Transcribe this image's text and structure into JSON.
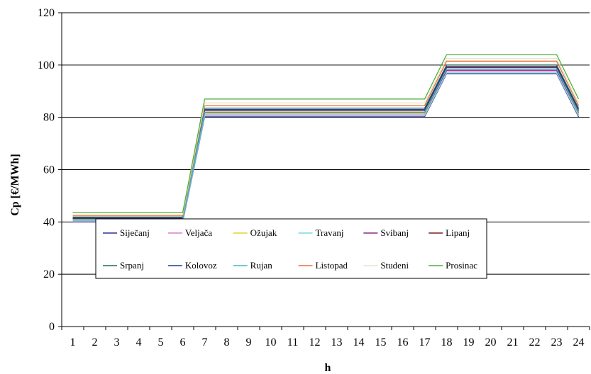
{
  "chart_data": {
    "type": "line",
    "xlabel": "h",
    "ylabel": "Cp [€/MWh]",
    "x": [
      1,
      2,
      3,
      4,
      5,
      6,
      7,
      8,
      9,
      10,
      11,
      12,
      13,
      14,
      15,
      16,
      17,
      18,
      19,
      20,
      21,
      22,
      23,
      24
    ],
    "xtick_labels": [
      "1",
      "2",
      "3",
      "4",
      "5",
      "6",
      "7",
      "8",
      "9",
      "10",
      "11",
      "12",
      "13",
      "14",
      "15",
      "16",
      "17",
      "18",
      "19",
      "20",
      "21",
      "22",
      "23",
      "24"
    ],
    "ylim": [
      0,
      120
    ],
    "ytick_labels": [
      "0",
      "20",
      "40",
      "60",
      "80",
      "100",
      "120"
    ],
    "grid": "horizontal",
    "legend_position": "lower-center",
    "series": [
      {
        "name": "Siječanj",
        "color": "#2e3192",
        "values": [
          40.0,
          40.0,
          40.0,
          40.0,
          40.0,
          40.0,
          80.2,
          80.2,
          80.2,
          80.2,
          80.2,
          80.2,
          80.2,
          80.2,
          80.2,
          80.2,
          80.2,
          96.7,
          96.7,
          96.7,
          96.7,
          96.7,
          96.7,
          80.2
        ]
      },
      {
        "name": "Veljača",
        "color": "#d97fd1",
        "values": [
          40.5,
          40.5,
          40.5,
          40.5,
          40.5,
          40.5,
          81.0,
          81.0,
          81.0,
          81.0,
          81.0,
          81.0,
          81.0,
          81.0,
          81.0,
          81.0,
          81.0,
          97.5,
          97.5,
          97.5,
          97.5,
          97.5,
          97.5,
          81.0
        ]
      },
      {
        "name": "Ožujak",
        "color": "#e8d230",
        "values": [
          40.8,
          40.8,
          40.8,
          40.8,
          40.8,
          40.8,
          81.5,
          81.5,
          81.5,
          81.5,
          81.5,
          81.5,
          81.5,
          81.5,
          81.5,
          81.5,
          81.5,
          98.0,
          98.0,
          98.0,
          98.0,
          98.0,
          98.0,
          81.5
        ]
      },
      {
        "name": "Travanj",
        "color": "#7fd8e0",
        "values": [
          40.3,
          40.3,
          40.3,
          40.3,
          40.3,
          40.3,
          80.6,
          80.6,
          80.6,
          80.6,
          80.6,
          80.6,
          80.6,
          80.6,
          80.6,
          80.6,
          80.6,
          97.0,
          97.0,
          97.0,
          97.0,
          97.0,
          97.0,
          80.6
        ]
      },
      {
        "name": "Svibanj",
        "color": "#8a2b8c",
        "values": [
          41.0,
          41.0,
          41.0,
          41.0,
          41.0,
          41.0,
          81.8,
          81.8,
          81.8,
          81.8,
          81.8,
          81.8,
          81.8,
          81.8,
          81.8,
          81.8,
          81.8,
          98.0,
          98.0,
          98.0,
          98.0,
          98.0,
          98.0,
          81.8
        ]
      },
      {
        "name": "Lipanj",
        "color": "#7a2020",
        "values": [
          41.3,
          41.3,
          41.3,
          41.3,
          41.3,
          41.3,
          82.5,
          82.5,
          82.5,
          82.5,
          82.5,
          82.5,
          82.5,
          82.5,
          82.5,
          82.5,
          82.5,
          99.0,
          99.0,
          99.0,
          99.0,
          99.0,
          99.0,
          82.5
        ]
      },
      {
        "name": "Srpanj",
        "color": "#1f6b5e",
        "values": [
          41.8,
          41.8,
          41.8,
          41.8,
          41.8,
          41.8,
          83.5,
          83.5,
          83.5,
          83.5,
          83.5,
          83.5,
          83.5,
          83.5,
          83.5,
          83.5,
          83.5,
          100.0,
          100.0,
          100.0,
          100.0,
          100.0,
          100.0,
          83.5
        ]
      },
      {
        "name": "Kolovoz",
        "color": "#1f3f8f",
        "values": [
          41.5,
          41.5,
          41.5,
          41.5,
          41.5,
          41.5,
          83.0,
          83.0,
          83.0,
          83.0,
          83.0,
          83.0,
          83.0,
          83.0,
          83.0,
          83.0,
          83.0,
          99.5,
          99.5,
          99.5,
          99.5,
          99.5,
          99.5,
          83.0
        ]
      },
      {
        "name": "Rujan",
        "color": "#3fb8c8",
        "values": [
          41.0,
          41.0,
          41.0,
          41.0,
          41.0,
          41.0,
          82.0,
          82.0,
          82.0,
          82.0,
          82.0,
          82.0,
          82.0,
          82.0,
          82.0,
          82.0,
          82.0,
          98.5,
          98.5,
          98.5,
          98.5,
          98.5,
          98.5,
          82.0
        ]
      },
      {
        "name": "Listopad",
        "color": "#e8703a",
        "values": [
          42.3,
          42.3,
          42.3,
          42.3,
          42.3,
          42.3,
          84.5,
          84.5,
          84.5,
          84.5,
          84.5,
          84.5,
          84.5,
          84.5,
          84.5,
          84.5,
          84.5,
          101.5,
          101.5,
          101.5,
          101.5,
          101.5,
          101.5,
          84.5
        ]
      },
      {
        "name": "Studeni",
        "color": "#e8e4c8",
        "values": [
          42.8,
          42.8,
          42.8,
          42.8,
          42.8,
          42.8,
          85.5,
          85.5,
          85.5,
          85.5,
          85.5,
          85.5,
          85.5,
          85.5,
          85.5,
          85.5,
          85.5,
          102.5,
          102.5,
          102.5,
          102.5,
          102.5,
          102.5,
          85.5
        ]
      },
      {
        "name": "Prosinac",
        "color": "#4caf3c",
        "values": [
          43.5,
          43.5,
          43.5,
          43.5,
          43.5,
          43.5,
          87.0,
          87.0,
          87.0,
          87.0,
          87.0,
          87.0,
          87.0,
          87.0,
          87.0,
          87.0,
          87.0,
          104.0,
          104.0,
          104.0,
          104.0,
          104.0,
          104.0,
          87.0
        ]
      }
    ]
  }
}
